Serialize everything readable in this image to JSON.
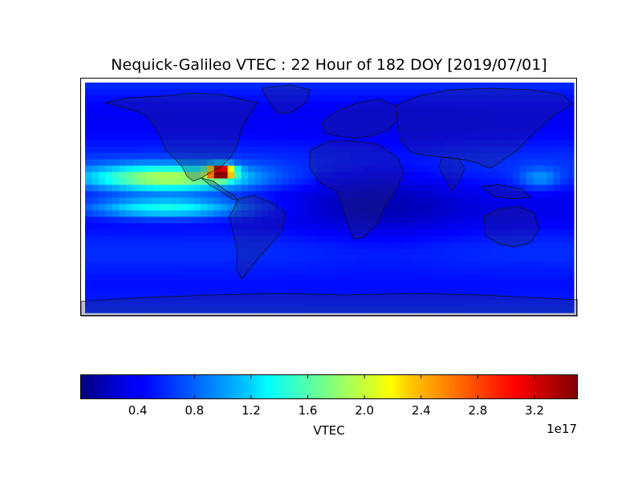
{
  "chart_data": {
    "type": "heatmap",
    "title": "Nequick-Galileo VTEC : 22 Hour of 182 DOY [2019/07/01]",
    "colorbar": {
      "label": "VTEC",
      "exponent_label": "1e17",
      "colormap": "jet",
      "range": [
        0.0,
        3.5
      ],
      "ticks": [
        0.4,
        0.8,
        1.2,
        1.6,
        2.0,
        2.4,
        2.8,
        3.2
      ],
      "tick_labels": [
        "0.4",
        "0.8",
        "1.2",
        "1.6",
        "2.0",
        "2.4",
        "2.8",
        "3.2"
      ]
    },
    "map": {
      "projection": "cylindrical",
      "lon_range": [
        -180,
        180
      ],
      "lat_range": [
        -90,
        90
      ],
      "grid_resolution_deg": [
        5,
        5
      ],
      "units": "1e17 electrons/m^2",
      "features": {
        "peak": {
          "lon": -80,
          "lat": 20,
          "value": 3.5
        },
        "secondary_band": {
          "lat": 15,
          "lon_range": [
            -180,
            -30
          ],
          "value": 1.9
        },
        "background_low_value": 0.25,
        "polar_value": 0.6
      }
    }
  }
}
